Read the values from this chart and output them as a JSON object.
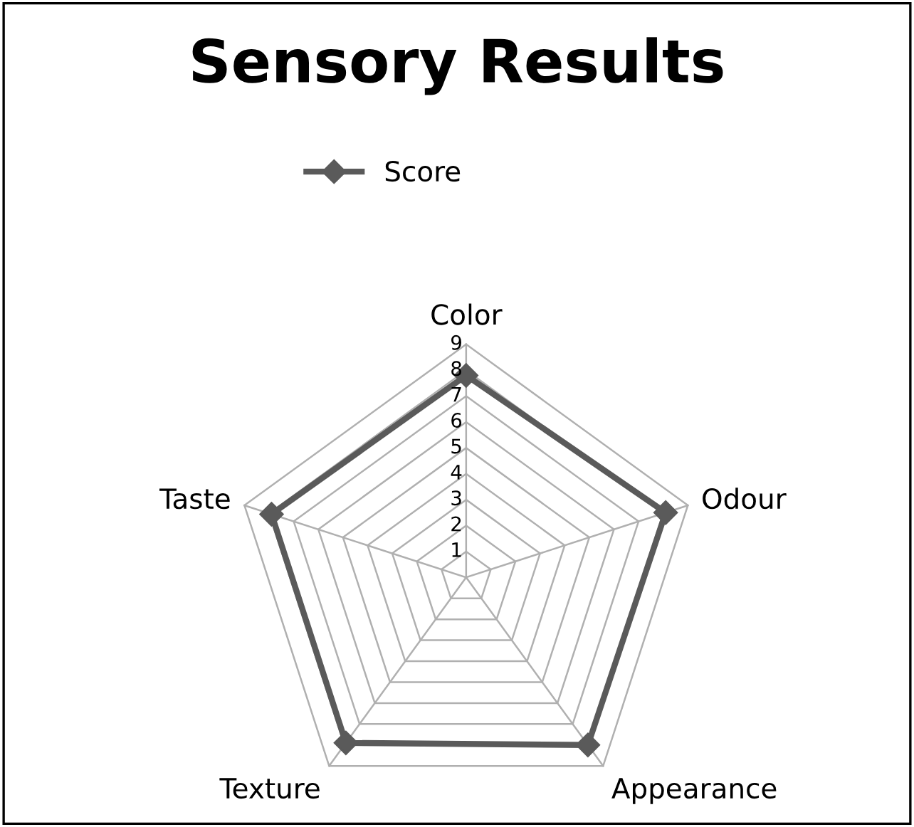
{
  "chart_data": {
    "type": "radar",
    "title": "Sensory Results",
    "categories": [
      "Color",
      "Odour",
      "Appearance",
      "Texture",
      "Taste"
    ],
    "series": [
      {
        "name": "Score",
        "color": "#5a5a5a",
        "values": [
          7.8,
          8.1,
          8.0,
          7.9,
          7.9
        ]
      }
    ],
    "ylim": [
      0,
      9
    ],
    "yticks": [
      1,
      2,
      3,
      4,
      5,
      6,
      7,
      8,
      9
    ],
    "grid": true,
    "legend": "top",
    "marker": "diamond",
    "line_style": "solid"
  }
}
